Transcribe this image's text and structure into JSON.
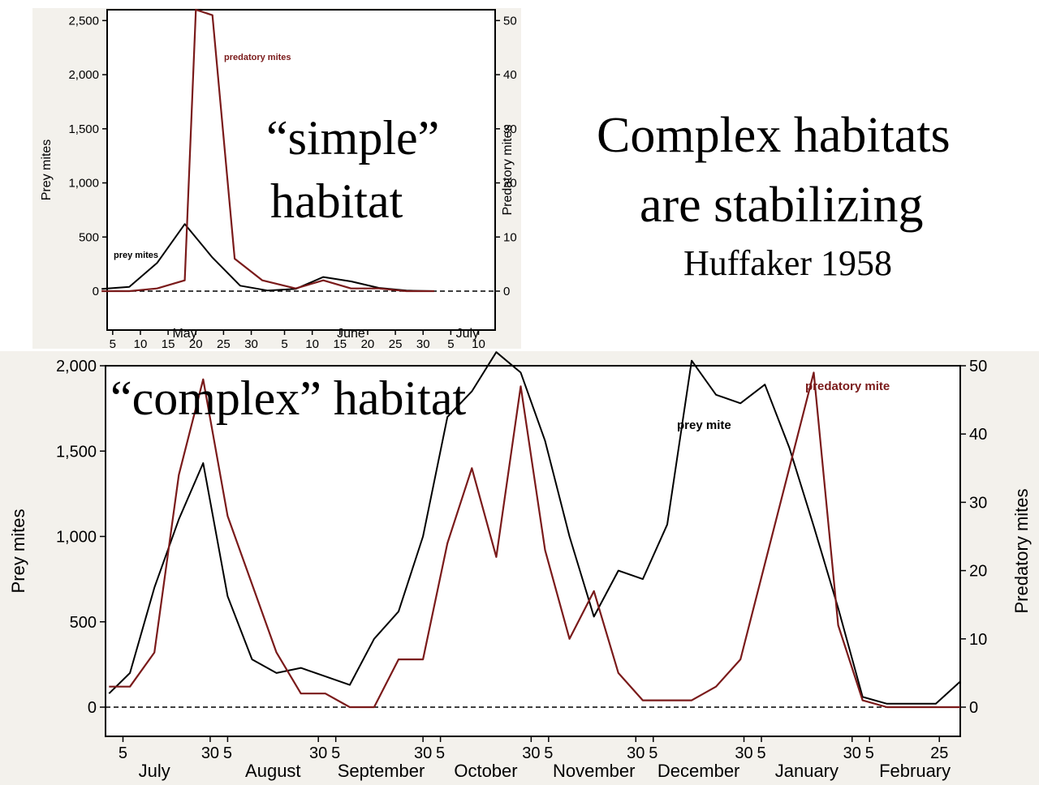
{
  "slide": {
    "title_line1": "Complex habitats",
    "title_line2": "are stabilizing",
    "citation": "Huffaker 1958",
    "simple_label_line1": "“simple”",
    "simple_label_line2": "habitat",
    "complex_label": "“complex” habitat"
  },
  "colors": {
    "prey": "#000000",
    "predator": "#7a1a1a"
  },
  "chart_data": [
    {
      "type": "line",
      "ylabel": "Prey mites",
      "y2label": "Predatory mites",
      "ylim": [
        0,
        2600
      ],
      "y2lim": [
        0,
        52
      ],
      "yticks": [
        "0",
        "500",
        "1,000",
        "1,500",
        "2,000",
        "2,500"
      ],
      "y2ticks": [
        "0",
        "10",
        "20",
        "30",
        "40",
        "50"
      ],
      "xlim": [
        4,
        74
      ],
      "xticks": [
        {
          "x": 5,
          "label": "5"
        },
        {
          "x": 10,
          "label": "10"
        },
        {
          "x": 15,
          "label": "15"
        },
        {
          "x": 20,
          "label": "20"
        },
        {
          "x": 25,
          "label": "25"
        },
        {
          "x": 30,
          "label": "30"
        },
        {
          "x": 36,
          "label": "5"
        },
        {
          "x": 41,
          "label": "10"
        },
        {
          "x": 46,
          "label": "15"
        },
        {
          "x": 51,
          "label": "20"
        },
        {
          "x": 56,
          "label": "25"
        },
        {
          "x": 61,
          "label": "30"
        },
        {
          "x": 66,
          "label": "5"
        },
        {
          "x": 71,
          "label": "10"
        }
      ],
      "months": [
        {
          "x": 18,
          "label": "May"
        },
        {
          "x": 48,
          "label": "June"
        },
        {
          "x": 69,
          "label": "July"
        }
      ],
      "series": [
        {
          "name": "prey mites",
          "axis": "left",
          "x": [
            3,
            8,
            13,
            18,
            23,
            28,
            33,
            38,
            43,
            48,
            53,
            58,
            63
          ],
          "values": [
            20,
            40,
            260,
            620,
            310,
            50,
            5,
            20,
            130,
            90,
            30,
            5,
            0
          ]
        },
        {
          "name": "predatory mites",
          "axis": "right",
          "x": [
            3,
            8,
            13,
            18,
            20,
            23,
            27,
            32,
            38,
            43,
            48,
            53,
            58,
            63
          ],
          "values": [
            0,
            0,
            0.5,
            2,
            52,
            51,
            6,
            2,
            0.5,
            2,
            0.5,
            0.5,
            0,
            0
          ]
        }
      ]
    },
    {
      "type": "line",
      "ylabel": "Prey mites",
      "y2label": "Predatory mites",
      "ylim": [
        0,
        2000
      ],
      "y2lim": [
        0,
        50
      ],
      "yticks": [
        "0",
        "500",
        "1,000",
        "1,500",
        "2,000"
      ],
      "y2ticks": [
        "0",
        "10",
        "20",
        "30",
        "40",
        "50"
      ],
      "xlim": [
        0,
        245
      ],
      "xticks": [
        {
          "x": 5,
          "label": "5"
        },
        {
          "x": 30,
          "label": "30"
        },
        {
          "x": 35,
          "label": "5"
        },
        {
          "x": 61,
          "label": "30"
        },
        {
          "x": 66,
          "label": "5"
        },
        {
          "x": 91,
          "label": "30"
        },
        {
          "x": 96,
          "label": "5"
        },
        {
          "x": 122,
          "label": "30"
        },
        {
          "x": 127,
          "label": "5"
        },
        {
          "x": 152,
          "label": "30"
        },
        {
          "x": 157,
          "label": "5"
        },
        {
          "x": 183,
          "label": "30"
        },
        {
          "x": 188,
          "label": "5"
        },
        {
          "x": 214,
          "label": "30"
        },
        {
          "x": 219,
          "label": "5"
        },
        {
          "x": 239,
          "label": "25"
        }
      ],
      "months": [
        {
          "x": 14,
          "label": "July"
        },
        {
          "x": 48,
          "label": "August"
        },
        {
          "x": 79,
          "label": "September"
        },
        {
          "x": 109,
          "label": "October"
        },
        {
          "x": 140,
          "label": "November"
        },
        {
          "x": 170,
          "label": "December"
        },
        {
          "x": 201,
          "label": "January"
        },
        {
          "x": 232,
          "label": "February"
        }
      ],
      "series": [
        {
          "name": "prey mite",
          "axis": "left",
          "x": [
            1,
            7,
            14,
            21,
            28,
            35,
            42,
            49,
            56,
            63,
            70,
            77,
            84,
            91,
            98,
            105,
            112,
            119,
            126,
            133,
            140,
            147,
            154,
            161,
            168,
            175,
            182,
            189,
            196,
            203,
            210,
            217,
            224,
            231,
            238,
            245
          ],
          "values": [
            80,
            200,
            700,
            1100,
            1430,
            650,
            280,
            200,
            230,
            180,
            130,
            400,
            560,
            1000,
            1700,
            1850,
            2080,
            1960,
            1560,
            1000,
            530,
            800,
            750,
            1070,
            2030,
            1830,
            1780,
            1890,
            1520,
            1060,
            580,
            60,
            20,
            20,
            20,
            150
          ]
        },
        {
          "name": "predatory mite",
          "axis": "right",
          "x": [
            1,
            7,
            14,
            21,
            28,
            35,
            42,
            49,
            56,
            63,
            70,
            77,
            84,
            91,
            98,
            105,
            112,
            119,
            126,
            133,
            140,
            147,
            154,
            161,
            168,
            175,
            182,
            189,
            196,
            203,
            210,
            217,
            224,
            231,
            238,
            245
          ],
          "values": [
            3,
            3,
            8,
            34,
            48,
            28,
            18,
            8,
            2,
            2,
            0,
            0,
            7,
            7,
            24,
            35,
            22,
            47,
            23,
            10,
            17,
            5,
            1,
            1,
            1,
            3,
            7,
            21,
            35,
            49,
            12,
            1,
            0,
            0,
            0,
            0
          ]
        }
      ]
    }
  ]
}
